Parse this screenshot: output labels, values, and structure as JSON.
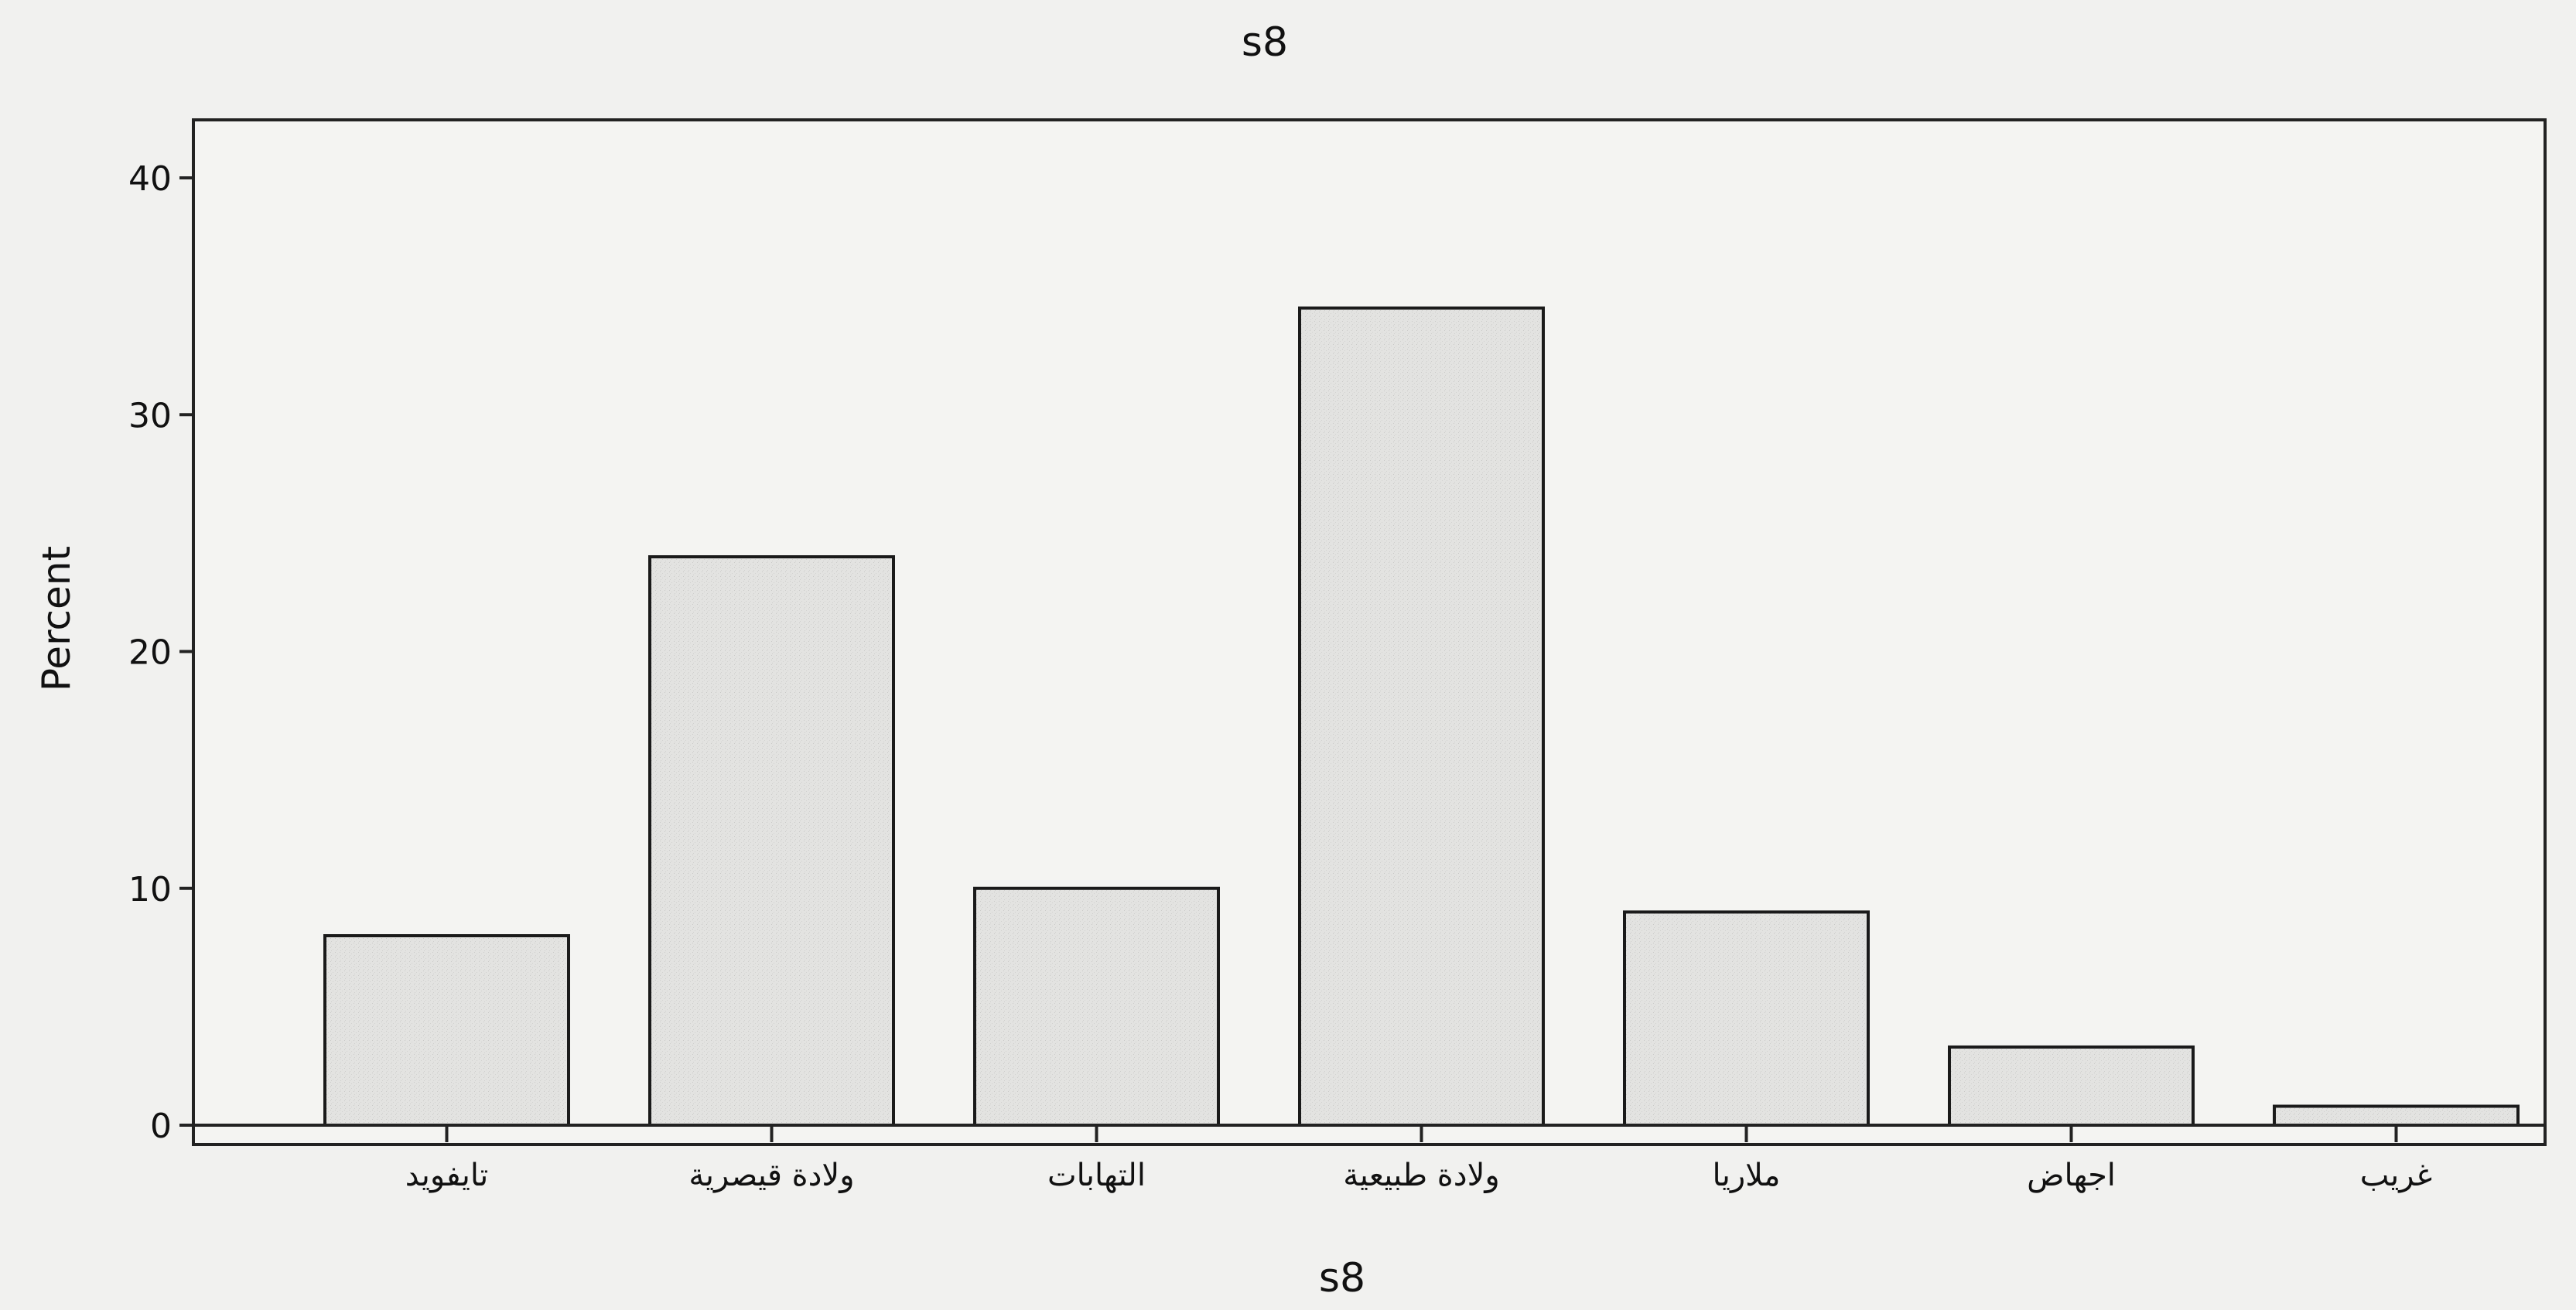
{
  "chart_data": {
    "type": "bar",
    "title": "s8",
    "xlabel": "s8",
    "ylabel": "Percent",
    "categories": [
      "تايفويد",
      "ولادة قيصرية",
      "التهابات",
      "ولادة طبيعية",
      "ملاريا",
      "اجهاض",
      "غريب"
    ],
    "values": [
      8,
      24,
      10,
      34.5,
      9,
      3.3,
      0.8
    ],
    "ylim": [
      0,
      40
    ],
    "yticks": [
      0,
      10,
      20,
      30,
      40
    ],
    "grid": false,
    "legend": "none",
    "bar_color": "#e2e2e0",
    "background": "#f1f1ef"
  }
}
